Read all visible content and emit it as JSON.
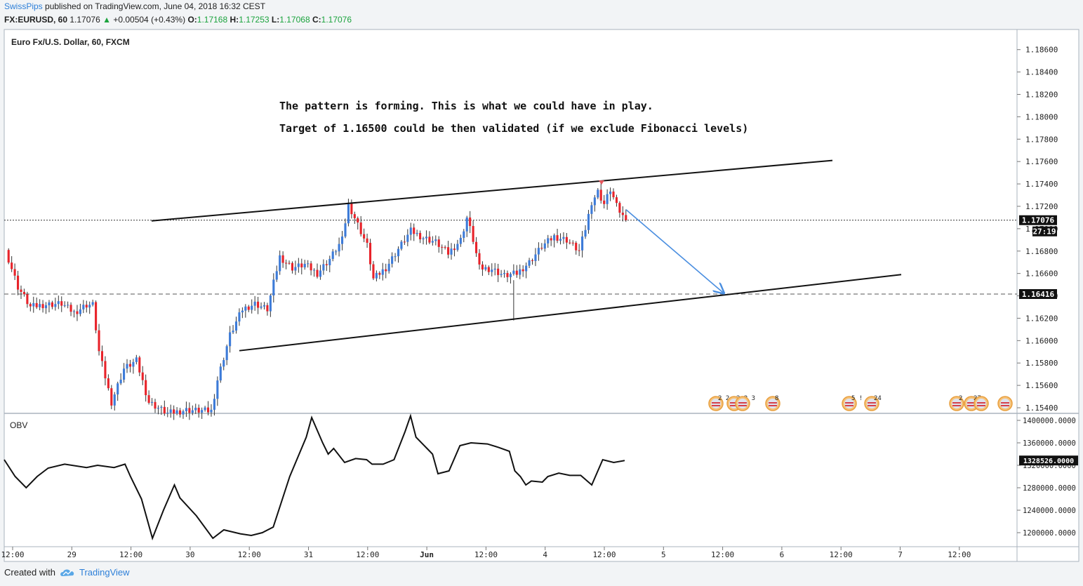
{
  "header": {
    "author": "SwissPips",
    "published_text": "published on TradingView.com, June 04, 2018 16:32 CEST",
    "symbol": "FX:EURUSD, 60",
    "last": "1.17076",
    "change": "+0.00504 (+0.43%)",
    "o_label": "O:",
    "o": "1.17168",
    "h_label": "H:",
    "h": "1.17253",
    "l_label": "L:",
    "l": "1.17068",
    "c_label": "C:",
    "c": "1.17076"
  },
  "footer": {
    "created_with": "Created with",
    "brand": "TradingView"
  },
  "chart_data": [
    {
      "type": "candlestick",
      "title": "Euro Fx/U.S. Dollar, 60, FXCM",
      "ylim": [
        1.1535,
        1.1878
      ],
      "y_ticks": [
        "1.15400",
        "1.15600",
        "1.15800",
        "1.16000",
        "1.16200",
        "1.16400",
        "1.16600",
        "1.16800",
        "1.17000",
        "1.17200",
        "1.17400",
        "1.17600",
        "1.17800",
        "1.18000",
        "1.18200",
        "1.18400",
        "1.18600"
      ],
      "x_ticks": [
        "12:00",
        "29",
        "12:00",
        "30",
        "12:00",
        "31",
        "12:00",
        "Jun",
        "12:00",
        "4",
        "12:00",
        "5",
        "12:00",
        "6",
        "12:00",
        "7",
        "12:00"
      ],
      "last_price_label": "1.17076",
      "countdown_label": "27:19",
      "level_label": "1.16416",
      "annotations": [
        "The pattern is forming. This is what we could have in play.",
        "Target of 1.16500 could be then validated (if we exclude Fibonacci levels)"
      ],
      "event_labels": [
        "2 2",
        "2 2 3",
        "8",
        "5 !",
        "24",
        "2",
        "27"
      ],
      "colors": {
        "up": "#3d7bd8",
        "down": "#e8232a",
        "arrow": "#4a8ee0",
        "level": "#555555"
      }
    },
    {
      "type": "line",
      "title": "OBV",
      "ylim": [
        1175000,
        1410000
      ],
      "y_ticks": [
        "1200000.0000",
        "1240000.0000",
        "1280000.0000",
        "1320000.0000",
        "1360000.0000",
        "1400000.0000"
      ],
      "last_value_label": "1328526.0000"
    }
  ]
}
